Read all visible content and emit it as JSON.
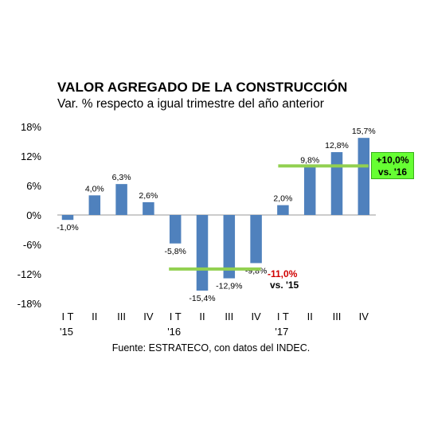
{
  "title": "VALOR AGREGADO DE LA CONSTRUCCIÓN",
  "subtitle": "Var. % respecto a igual trimestre del año anterior",
  "source": "Fuente: ESTRATECO, con datos del INDEC.",
  "colors": {
    "bar": "#4f81bd",
    "avg_line": "#92d050",
    "negative_annotation": "#d00000",
    "callout_bg": "#66ff33"
  },
  "chart_data": {
    "type": "bar",
    "categories": [
      "I T '15",
      "II",
      "III",
      "IV",
      "I T '16",
      "II",
      "III",
      "IV",
      "I T '17",
      "II",
      "III",
      "IV"
    ],
    "quarter_labels": [
      "I T",
      "II",
      "III",
      "IV",
      "I T",
      "II",
      "III",
      "IV",
      "I T",
      "II",
      "III",
      "IV"
    ],
    "year_labels": [
      "'15",
      "'16",
      "'17"
    ],
    "values": [
      -1.0,
      4.0,
      6.3,
      2.6,
      -5.8,
      -15.4,
      -12.9,
      -9.8,
      2.0,
      9.8,
      12.8,
      15.7
    ],
    "data_labels": [
      "-1,0%",
      "4,0%",
      "6,3%",
      "2,6%",
      "-5,8%",
      "-15,4%",
      "-12,9%",
      "-9,8%",
      "2,0%",
      "9,8%",
      "12,8%",
      "15,7%"
    ],
    "ylim": [
      -18,
      18
    ],
    "yticks": [
      18,
      12,
      6,
      0,
      -6,
      -12,
      -18
    ],
    "ytick_labels": [
      "18%",
      "12%",
      "6%",
      "0%",
      "-6%",
      "-12%",
      "-18%"
    ],
    "grid": false,
    "annual_averages": [
      {
        "value": -11.0,
        "label": "-11,0%",
        "vs": "vs. '15"
      },
      {
        "value": 10.0,
        "label": "+10,0%",
        "vs": "vs. '16"
      }
    ]
  }
}
